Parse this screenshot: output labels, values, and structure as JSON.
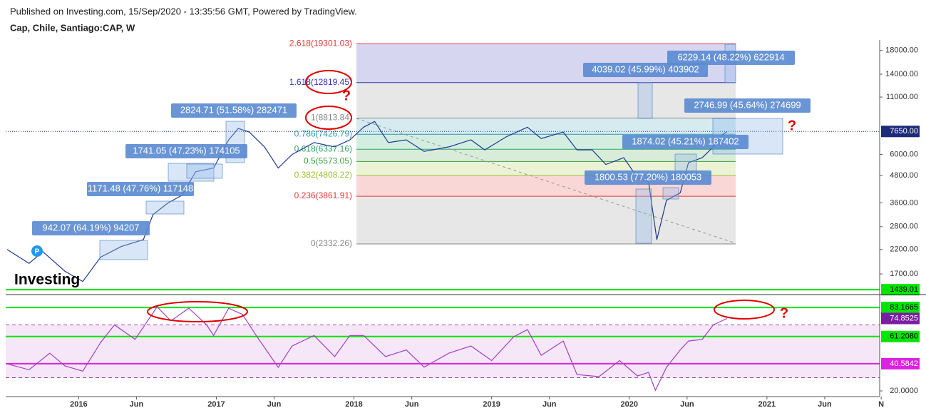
{
  "header": {
    "published": "Published on Investing.com, 15/Sep/2020 - 13:35:56 GMT, Powered by TradingView.",
    "symbol": "Cap, Chile, Santiago:CAP, W"
  },
  "logo": "Investing",
  "badge": "P",
  "question_marks": [
    "?",
    "?",
    "?"
  ],
  "chart_data": [
    {
      "type": "line",
      "color": "#1f3a93",
      "log_scale": true,
      "x": [
        2015.48,
        2015.64,
        2015.74,
        2015.9,
        2016.03,
        2016.16,
        2016.31,
        2016.47,
        2016.54,
        2016.65,
        2016.75,
        2016.85,
        2016.98,
        2017.09,
        2017.16,
        2017.24,
        2017.35,
        2017.45,
        2017.55,
        2017.71,
        2017.86,
        2017.97,
        2018.07,
        2018.15,
        2018.25,
        2018.38,
        2018.51,
        2018.69,
        2018.85,
        2018.95,
        2019.11,
        2019.26,
        2019.36,
        2019.52,
        2019.62,
        2019.73,
        2019.83,
        2019.96,
        2020.06,
        2020.14,
        2020.2,
        2020.27,
        2020.37,
        2020.43,
        2020.53,
        2020.61,
        2020.68,
        2020.71
      ],
      "values": [
        2200,
        1900,
        2150,
        1750,
        1570,
        2030,
        2270,
        2440,
        3180,
        3600,
        3900,
        5000,
        5200,
        7000,
        7900,
        7600,
        6500,
        5200,
        6000,
        6800,
        6500,
        7000,
        8000,
        8500,
        6800,
        7000,
        6200,
        6500,
        7000,
        6300,
        7250,
        8000,
        7100,
        7600,
        6300,
        6300,
        5400,
        5800,
        4700,
        4500,
        2440,
        3700,
        4000,
        5500,
        5800,
        6500,
        7400,
        7650
      ],
      "xlim": [
        2015.47,
        2021.85
      ],
      "ylim": [
        1430,
        19800
      ],
      "yticks": [
        {
          "value": 1700,
          "label": "1700.00"
        },
        {
          "value": 2200,
          "label": "2200.00"
        },
        {
          "value": 2800,
          "label": "2800.00"
        },
        {
          "value": 3600,
          "label": "3600.00"
        },
        {
          "value": 4800,
          "label": "4800.00"
        },
        {
          "value": 6000,
          "label": "6000.00"
        },
        {
          "value": 11000,
          "label": "11000.00"
        },
        {
          "value": 14000,
          "label": "14000.00"
        },
        {
          "value": 18000,
          "label": "18000.00"
        }
      ],
      "last_value": {
        "value": 7650,
        "label": "7650.00"
      },
      "hlines": [
        {
          "value": 1439.01,
          "label": "1439.01",
          "color": "#00e600"
        }
      ],
      "fib_levels": [
        {
          "value": 19301.03,
          "label": "2.618(19301.03)",
          "color": "#e53935"
        },
        {
          "value": 12819.45,
          "label": "1.618(12819.45)",
          "color": "#3030b8"
        },
        {
          "value": 8813.84,
          "label": "1(8813.84)",
          "color": "#888888"
        },
        {
          "value": 7426.79,
          "label": "0.786(7426.79)",
          "color": "#2b9ab5"
        },
        {
          "value": 6337.16,
          "label": "0.618(6337.16)",
          "color": "#2aa567"
        },
        {
          "value": 5573.05,
          "label": "0.5(5573.05)",
          "color": "#3f9f3f"
        },
        {
          "value": 4808.22,
          "label": "0.382(4808.22)",
          "color": "#9cc02c"
        },
        {
          "value": 3861.91,
          "label": "0.236(3861.91)",
          "color": "#e53935"
        },
        {
          "value": 2332.26,
          "label": "0(2332.26)",
          "color": "#888888"
        }
      ],
      "measures": [
        "942.07 (64.19%) 94207",
        "1171.48 (47.76%) 117148",
        "1741.05 (47.23%) 174105",
        "2824.71 (51.58%) 282471",
        "4039.02 (45.99%) 403902",
        "6229.14 (48.22%) 622914",
        "2746.99 (45.64%) 274699",
        "1874.02 (45.21%) 187402",
        "1800.53 (77.20%) 180053"
      ]
    },
    {
      "type": "line",
      "color": "#a040c0",
      "x": [
        2015.48,
        2015.64,
        2015.79,
        2015.9,
        2016.03,
        2016.16,
        2016.26,
        2016.41,
        2016.57,
        2016.67,
        2016.8,
        2016.93,
        2016.98,
        2017.09,
        2017.19,
        2017.29,
        2017.45,
        2017.55,
        2017.71,
        2017.86,
        2017.97,
        2018.07,
        2018.23,
        2018.38,
        2018.51,
        2018.69,
        2018.85,
        2019.0,
        2019.16,
        2019.26,
        2019.36,
        2019.52,
        2019.62,
        2019.78,
        2019.93,
        2020.06,
        2020.14,
        2020.19,
        2020.27,
        2020.37,
        2020.43,
        2020.53,
        2020.61,
        2020.71
      ],
      "values": [
        40.5,
        36,
        48.6,
        39,
        35,
        56.7,
        70,
        59,
        83.7,
        73,
        82.6,
        70,
        62,
        82.6,
        78,
        62,
        37.8,
        54,
        62,
        46,
        62,
        62,
        46,
        51,
        38,
        48.6,
        54,
        43,
        61,
        66.4,
        47,
        57.8,
        32.4,
        30.8,
        43,
        31.3,
        34,
        20.5,
        37.8,
        51,
        57.8,
        59,
        70,
        74.85
      ],
      "xlim": [
        2015.47,
        2021.85
      ],
      "ylim": [
        15.7,
        92.4
      ],
      "yticks": [
        {
          "value": 20,
          "label": "20.0000"
        }
      ],
      "band": [
        30,
        70
      ],
      "last_value": {
        "value": 74.8525,
        "label": "74.8525"
      },
      "hlines": [
        {
          "value": 83.1665,
          "label": "83.1665",
          "color": "#00e600"
        },
        {
          "value": 61.208,
          "label": "61.2080",
          "color": "#00e600"
        },
        {
          "value": 40.5842,
          "label": "40.5842",
          "color": "#e020e0"
        }
      ],
      "xticks": [
        {
          "value": 2016,
          "label": "2016"
        },
        {
          "value": 2016.42,
          "label": "Jun"
        },
        {
          "value": 2017,
          "label": "2017"
        },
        {
          "value": 2017.42,
          "label": "Jun"
        },
        {
          "value": 2018,
          "label": "2018"
        },
        {
          "value": 2018.42,
          "label": "Jun"
        },
        {
          "value": 2019,
          "label": "2019"
        },
        {
          "value": 2019.42,
          "label": "Jun"
        },
        {
          "value": 2020,
          "label": "2020"
        },
        {
          "value": 2020.42,
          "label": "Jun"
        },
        {
          "value": 2021,
          "label": "2021"
        },
        {
          "value": 2021.42,
          "label": "Jun"
        },
        {
          "value": 2021.83,
          "label": "N"
        }
      ]
    }
  ]
}
